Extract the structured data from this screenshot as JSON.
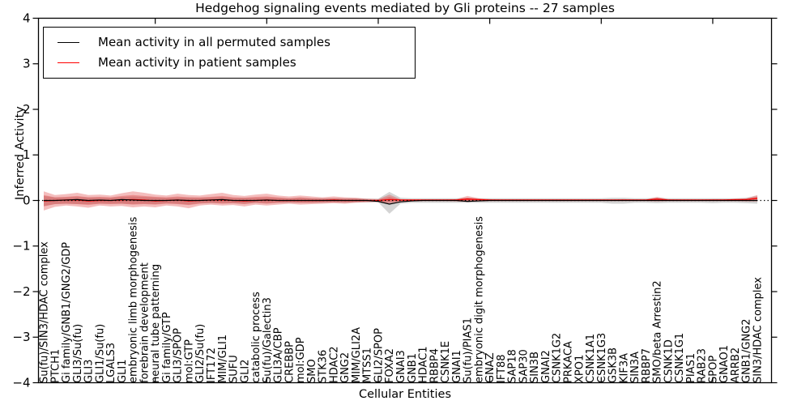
{
  "chart_data": {
    "type": "line",
    "title": "Hedgehog signaling events mediated by Gli proteins -- 27 samples",
    "xlabel": "Cellular Entities",
    "ylabel": "Inferred Activity",
    "ylim": [
      -4,
      4
    ],
    "ytick_labels": [
      "4",
      "3",
      "2",
      "1",
      "0",
      "−1",
      "−2",
      "−3",
      "−4"
    ],
    "ytick_values": [
      4,
      3,
      2,
      1,
      0,
      -1,
      -2,
      -3,
      -4
    ],
    "top_tick_indices": [
      10,
      20,
      30,
      40,
      50,
      60
    ],
    "grid": false,
    "legend_position": "upper-left",
    "legend": [
      {
        "label": "Mean activity in all permuted samples",
        "color": "#000000"
      },
      {
        "label": "Mean activity in patient samples",
        "color": "#ff0000"
      }
    ],
    "colors": {
      "patient_line": "#ff0000",
      "permuted_line": "#000000",
      "patient_band": "rgba(222,56,56,0.33)",
      "permuted_band": "rgba(120,120,120,0.32)",
      "zero_line": "#000000",
      "axis": "#000000"
    },
    "categories": [
      "Su(fu)/SIN3/HDAC complex",
      "PTCH1",
      "Gi family/GNB1/GNG2/GDP",
      "GLI3/Su(fu)",
      "GLI3",
      "GLI1/Su(fu)",
      "LGALS3",
      "GLI1",
      "embryonic limb morphogenesis",
      "forebrain development",
      "neural tube patterning",
      "Gi family/GTP",
      "GLI3/SPOP",
      "mol:GTP",
      "GLI2/Su(fu)",
      "IFT172",
      "MIM/GLI1",
      "SUFU",
      "GLI2",
      "catabolic process",
      "Su(fu)/Galectin3",
      "GLI3A/CBP",
      "CREBBP",
      "mol:GDP",
      "SMO",
      "STK36",
      "HDAC2",
      "GNG2",
      "MIM/GLI2A",
      "MTSS1",
      "GLI2/SPOP",
      "FOXA2",
      "GNAI3",
      "GNB1",
      "HDAC1",
      "RBBP4",
      "CSNK1E",
      "GNAI1",
      "Su(fu)/PIAS1",
      "embryonic digit morphogenesis",
      "GNAZ",
      "IFT88",
      "SAP18",
      "SAP30",
      "SIN3B",
      "GNAI2",
      "CSNK1G2",
      "PRKACA",
      "XPO1",
      "CSNK1A1",
      "CSNK1G3",
      "GSK3B",
      "KIF3A",
      "SIN3A",
      "RBBP7",
      "SMO/beta Arrestin2",
      "CSNK1D",
      "CSNK1G1",
      "PIAS1",
      "RAB23",
      "SPOP",
      "GNAO1",
      "ARRB2",
      "GNB1/GNG2",
      "SIN3/HDAC complex"
    ],
    "series": [
      {
        "name": "Mean activity in all permuted samples",
        "color": "#000000",
        "values": [
          0,
          0,
          0.01,
          0.02,
          0,
          0.01,
          0,
          0.02,
          0.01,
          0,
          0,
          0,
          0.01,
          0,
          0,
          0.01,
          0.02,
          0,
          0,
          0,
          0.01,
          0,
          0,
          0,
          0,
          0,
          0,
          0,
          0,
          0,
          -0.02,
          -0.08,
          -0.03,
          -0.01,
          0,
          0,
          0,
          0,
          -0.02,
          -0.01,
          0,
          0,
          0,
          0,
          0,
          0,
          0,
          0,
          0,
          0,
          0,
          0,
          0,
          0,
          0,
          0,
          0,
          0,
          0,
          0,
          0,
          0,
          0,
          0,
          0
        ]
      },
      {
        "name": "Mean activity in patient samples",
        "color": "#ff0000",
        "values": [
          -0.01,
          0,
          0.01,
          0.01,
          -0.01,
          0,
          0,
          0.01,
          0.02,
          0.01,
          -0.01,
          0,
          0.01,
          -0.01,
          0,
          0.01,
          0.01,
          0,
          -0.01,
          0,
          0.01,
          0,
          0,
          0,
          0,
          0,
          0.01,
          0,
          0,
          0,
          0,
          0.02,
          0.01,
          0.01,
          0.01,
          0.01,
          0.01,
          0.01,
          0.03,
          0.02,
          0.01,
          0.01,
          0.01,
          0.01,
          0.01,
          0.01,
          0.01,
          0.01,
          0.01,
          0.01,
          0.01,
          0.01,
          0.01,
          0.01,
          0.01,
          0.03,
          0.01,
          0.01,
          0.01,
          0.01,
          0.01,
          0.01,
          0.02,
          0.02,
          0.05
        ]
      }
    ],
    "bands": [
      {
        "name": "permuted-range",
        "upper": [
          0.1,
          0.07,
          0.07,
          0.08,
          0.07,
          0.07,
          0.06,
          0.08,
          0.09,
          0.08,
          0.07,
          0.06,
          0.07,
          0.07,
          0.06,
          0.07,
          0.08,
          0.06,
          0.06,
          0.06,
          0.07,
          0.06,
          0.05,
          0.06,
          0.05,
          0.05,
          0.05,
          0.05,
          0.05,
          0.04,
          0.04,
          0.19,
          0.06,
          0.05,
          0.05,
          0.05,
          0.05,
          0.05,
          0.06,
          0.05,
          0.05,
          0.05,
          0.05,
          0.05,
          0.05,
          0.05,
          0.05,
          0.05,
          0.05,
          0.05,
          0.05,
          0.06,
          0.06,
          0.05,
          0.05,
          0.06,
          0.05,
          0.05,
          0.05,
          0.05,
          0.05,
          0.05,
          0.05,
          0.06,
          0.1
        ],
        "lower": [
          -0.12,
          -0.08,
          -0.07,
          -0.08,
          -0.08,
          -0.07,
          -0.07,
          -0.07,
          -0.08,
          -0.07,
          -0.08,
          -0.06,
          -0.07,
          -0.09,
          -0.06,
          -0.06,
          -0.06,
          -0.06,
          -0.07,
          -0.05,
          -0.06,
          -0.05,
          -0.05,
          -0.05,
          -0.05,
          -0.05,
          -0.04,
          -0.05,
          -0.04,
          -0.04,
          -0.04,
          -0.29,
          -0.07,
          -0.05,
          -0.05,
          -0.05,
          -0.05,
          -0.05,
          -0.05,
          -0.05,
          -0.05,
          -0.05,
          -0.05,
          -0.05,
          -0.05,
          -0.05,
          -0.05,
          -0.05,
          -0.05,
          -0.05,
          -0.05,
          -0.07,
          -0.07,
          -0.05,
          -0.05,
          -0.06,
          -0.05,
          -0.05,
          -0.05,
          -0.05,
          -0.06,
          -0.05,
          -0.05,
          -0.06,
          -0.07
        ]
      },
      {
        "name": "patient-range",
        "upper": [
          0.2,
          0.12,
          0.14,
          0.17,
          0.12,
          0.13,
          0.11,
          0.16,
          0.2,
          0.17,
          0.13,
          0.11,
          0.15,
          0.12,
          0.11,
          0.14,
          0.17,
          0.12,
          0.1,
          0.13,
          0.15,
          0.11,
          0.09,
          0.11,
          0.09,
          0.07,
          0.09,
          0.07,
          0.06,
          0.04,
          0.03,
          0.13,
          0.03,
          0.02,
          0.02,
          0.02,
          0.02,
          0.03,
          0.1,
          0.05,
          0.03,
          0.02,
          0.02,
          0.02,
          0.02,
          0.02,
          0.02,
          0.02,
          0.02,
          0.02,
          0.02,
          0.02,
          0.03,
          0.02,
          0.02,
          0.08,
          0.03,
          0.02,
          0.02,
          0.02,
          0.03,
          0.03,
          0.03,
          0.05,
          0.12
        ],
        "lower": [
          -0.22,
          -0.14,
          -0.11,
          -0.13,
          -0.16,
          -0.11,
          -0.13,
          -0.12,
          -0.15,
          -0.13,
          -0.15,
          -0.11,
          -0.13,
          -0.17,
          -0.11,
          -0.09,
          -0.11,
          -0.1,
          -0.13,
          -0.09,
          -0.11,
          -0.09,
          -0.07,
          -0.09,
          -0.08,
          -0.07,
          -0.06,
          -0.07,
          -0.05,
          -0.04,
          -0.03,
          -0.07,
          -0.02,
          -0.02,
          -0.01,
          -0.01,
          -0.01,
          -0.02,
          -0.03,
          -0.02,
          -0.01,
          -0.01,
          -0.01,
          -0.01,
          -0.01,
          -0.01,
          -0.01,
          -0.01,
          -0.01,
          -0.01,
          -0.01,
          -0.01,
          -0.01,
          -0.01,
          -0.01,
          -0.02,
          -0.01,
          -0.01,
          -0.01,
          -0.01,
          -0.01,
          -0.01,
          -0.01,
          -0.02,
          -0.02
        ]
      },
      {
        "name": "patient-std",
        "upper": [
          0.12,
          0.07,
          0.08,
          0.1,
          0.07,
          0.08,
          0.07,
          0.1,
          0.12,
          0.1,
          0.08,
          0.07,
          0.09,
          0.07,
          0.07,
          0.08,
          0.1,
          0.07,
          0.06,
          0.08,
          0.09,
          0.07,
          0.05,
          0.07,
          0.05,
          0.04,
          0.05,
          0.04,
          0.04,
          0.02,
          0.02,
          0.08,
          0.02,
          0.01,
          0.01,
          0.01,
          0.01,
          0.02,
          0.06,
          0.03,
          0.02,
          0.01,
          0.01,
          0.01,
          0.01,
          0.01,
          0.01,
          0.01,
          0.01,
          0.01,
          0.01,
          0.01,
          0.02,
          0.01,
          0.01,
          0.05,
          0.02,
          0.01,
          0.01,
          0.01,
          0.02,
          0.02,
          0.02,
          0.03,
          0.07
        ],
        "lower": [
          -0.13,
          -0.08,
          -0.07,
          -0.08,
          -0.1,
          -0.07,
          -0.08,
          -0.07,
          -0.09,
          -0.08,
          -0.09,
          -0.07,
          -0.08,
          -0.1,
          -0.07,
          -0.05,
          -0.07,
          -0.06,
          -0.08,
          -0.05,
          -0.07,
          -0.05,
          -0.04,
          -0.05,
          -0.05,
          -0.04,
          -0.04,
          -0.04,
          -0.03,
          -0.02,
          -0.02,
          -0.04,
          -0.01,
          -0.01,
          -0.01,
          -0.01,
          -0.01,
          -0.01,
          -0.02,
          -0.01,
          -0.01,
          -0.01,
          -0.01,
          -0.01,
          -0.01,
          -0.01,
          -0.01,
          -0.01,
          -0.01,
          -0.01,
          -0.01,
          -0.01,
          -0.01,
          -0.01,
          -0.01,
          -0.01,
          -0.01,
          -0.01,
          -0.01,
          -0.01,
          -0.01,
          -0.01,
          -0.01,
          -0.01,
          -0.01
        ]
      }
    ],
    "zero_line": true
  }
}
